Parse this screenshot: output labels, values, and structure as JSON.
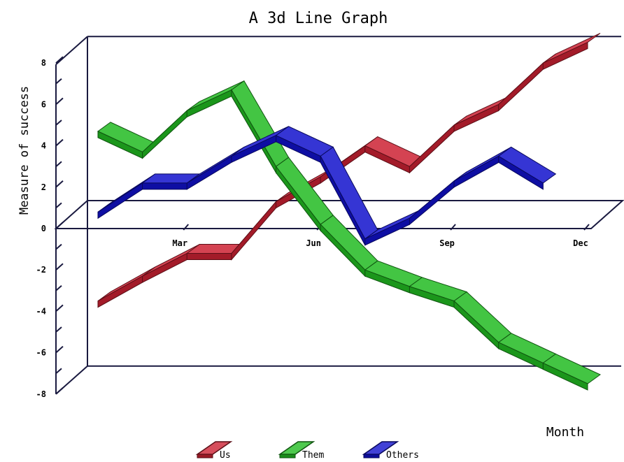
{
  "chart_data": {
    "type": "line",
    "style": "3d-ribbon",
    "title": "A 3d Line Graph",
    "xlabel": "Month",
    "ylabel": "Measure of success",
    "x_tick_labels": [
      "Mar",
      "Jun",
      "Sep",
      "Dec"
    ],
    "x_tick_indices": [
      2,
      5,
      8,
      11
    ],
    "y_ticks": [
      8,
      6,
      4,
      2,
      0,
      -2,
      -4,
      -6,
      -8
    ],
    "ylim": [
      -8,
      8
    ],
    "legend_position": "bottom",
    "series": [
      {
        "name": "Us",
        "color": "#cc2233",
        "values": [
          -3.5,
          -2.3,
          -1.2,
          -1.2,
          1.3,
          2.5,
          4.0,
          3.0,
          5.0,
          6.0,
          8.0,
          9.0
        ]
      },
      {
        "name": "Them",
        "color": "#22bb22",
        "values": [
          4.7,
          3.7,
          5.7,
          6.7,
          3.0,
          0.2,
          -2.0,
          -2.8,
          -3.5,
          -5.5,
          -6.5,
          -7.5
        ]
      },
      {
        "name": "Others",
        "color": "#1111cc",
        "values": [
          0.8,
          2.2,
          2.2,
          3.5,
          4.5,
          3.5,
          -0.5,
          0.5,
          2.3,
          3.5,
          2.2,
          null
        ]
      }
    ]
  }
}
